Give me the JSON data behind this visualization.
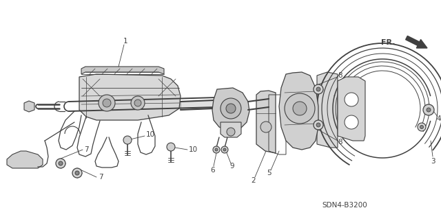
{
  "diagram_code": "SDN4-B3200",
  "background_color": "#ffffff",
  "line_color": "#404040",
  "text_color": "#404040",
  "fr_label": "FR.",
  "figsize": [
    6.4,
    3.19
  ],
  "dpi": 100,
  "xlim": [
    0,
    640
  ],
  "ylim": [
    0,
    319
  ]
}
